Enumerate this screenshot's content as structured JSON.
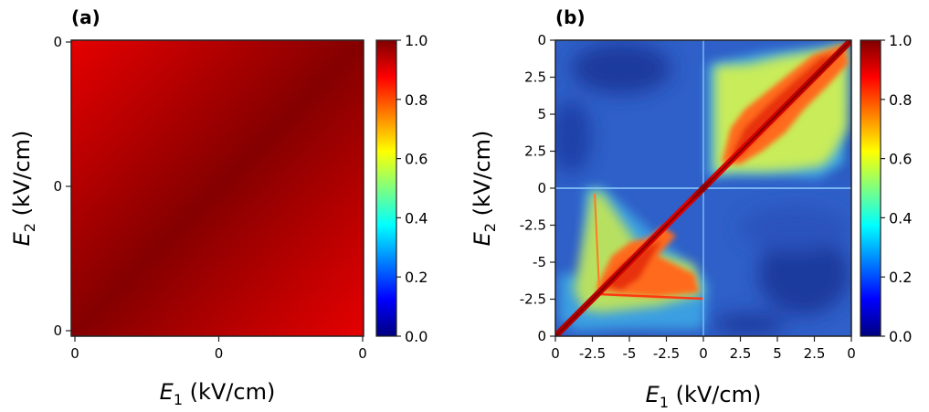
{
  "colormap": [
    "#00007f",
    "#0000ff",
    "#007fff",
    "#00ffff",
    "#7fff7f",
    "#ffff00",
    "#ff7f00",
    "#ff0000",
    "#7f0000"
  ],
  "chart_data": [
    {
      "type": "heatmap",
      "panel_label": "(a)",
      "xlabel": {
        "symbol": "E",
        "sub": "1",
        "unit": " (kV/cm)"
      },
      "ylabel": {
        "symbol": "E",
        "sub": "2",
        "unit": " (kV/cm)"
      },
      "x_ticks": [
        "0",
        "0",
        "0"
      ],
      "y_ticks": [
        "0",
        "0",
        "0"
      ],
      "colorbar": {
        "min": 0.0,
        "max": 1.0,
        "ticks": [
          "0.0",
          "0.2",
          "0.4",
          "0.6",
          "0.8",
          "1.0"
        ]
      },
      "description_values": {
        "diagonal_value": 1.0,
        "corner_value": 0.9
      },
      "value_range": [
        0.9,
        1.0
      ]
    },
    {
      "type": "heatmap",
      "panel_label": "(b)",
      "xlabel": {
        "symbol": "E",
        "sub": "1",
        "unit": " (kV/cm)"
      },
      "ylabel": {
        "symbol": "E",
        "sub": "2",
        "unit": " (kV/cm)"
      },
      "x_ticks": [
        "0",
        "-2.5",
        "-5",
        "-2.5",
        "0",
        "2.5",
        "5",
        "2.5",
        "0"
      ],
      "y_ticks": [
        "0",
        "2.5",
        "5",
        "2.5",
        "0",
        "-2.5",
        "-5",
        "-2.5",
        "0"
      ],
      "colorbar": {
        "min": 0.0,
        "max": 1.0,
        "ticks": [
          "0.0",
          "0.2",
          "0.4",
          "0.6",
          "0.8",
          "1.0"
        ]
      },
      "value_range": [
        0.0,
        1.0
      ]
    }
  ]
}
